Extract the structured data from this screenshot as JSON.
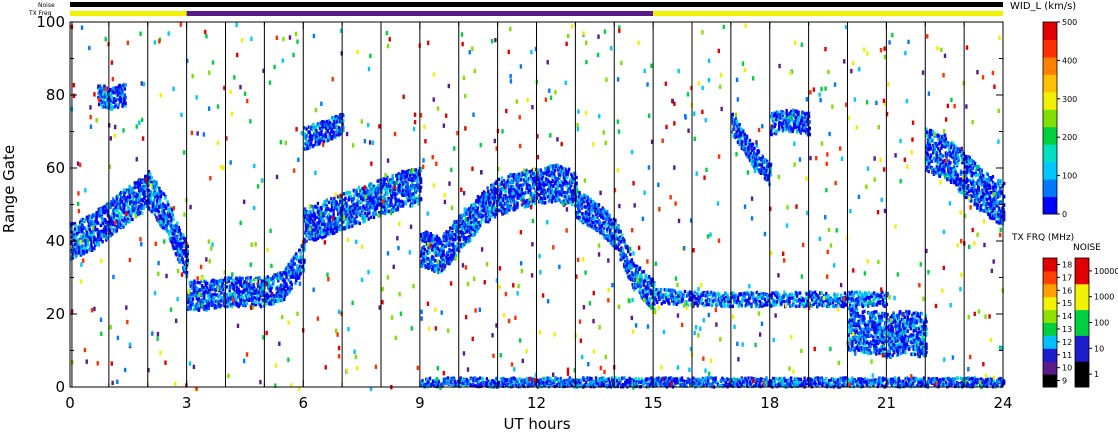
{
  "chart_data": {
    "type": "heatmap",
    "top_labels": {
      "noise": "Noise",
      "txfreq": "TX Freq"
    },
    "xlabel": "UT hours",
    "ylabel": "Range Gate",
    "xlim": [
      0,
      24
    ],
    "ylim": [
      0,
      100
    ],
    "x_ticks": [
      "0",
      "3",
      "6",
      "9",
      "12",
      "15",
      "18",
      "21",
      "24"
    ],
    "y_ticks": [
      "0",
      "20",
      "40",
      "60",
      "80",
      "100"
    ],
    "scan_boundaries_ut": [
      0.05,
      1.0,
      2.0,
      3.0,
      4.0,
      5.0,
      6.0,
      7.0,
      8.0,
      9.0,
      10.0,
      11.0,
      12.0,
      13.0,
      14.0,
      15.0,
      16.0,
      17.0,
      18.0,
      19.0,
      20.0,
      21.0,
      22.0,
      23.0
    ],
    "top_bars": {
      "noise_color": "#000000",
      "txfreq_segments": [
        {
          "from": 0,
          "to": 3,
          "color": "#f2f200"
        },
        {
          "from": 3,
          "to": 15,
          "color": "#5a1a8a"
        },
        {
          "from": 15,
          "to": 24,
          "color": "#f2f200"
        }
      ]
    },
    "echo_bands": [
      {
        "x": [
          0,
          0.5,
          1,
          1.5,
          2,
          2.5,
          3
        ],
        "y": [
          40,
          42,
          46,
          50,
          54,
          46,
          34
        ],
        "width": 5
      },
      {
        "x": [
          0.7,
          1.0,
          1.4
        ],
        "y": [
          80,
          79,
          80
        ],
        "width": 3
      },
      {
        "x": [
          3,
          3.5,
          4,
          4.5,
          5,
          5.5,
          6
        ],
        "y": [
          25,
          25,
          26,
          26,
          26,
          28,
          36
        ],
        "width": 4
      },
      {
        "x": [
          6,
          6.5,
          7,
          7.5,
          8,
          8.5,
          9
        ],
        "y": [
          44,
          46,
          48,
          50,
          52,
          54,
          55
        ],
        "width": 5
      },
      {
        "x": [
          6,
          6.5,
          7
        ],
        "y": [
          68,
          70,
          72
        ],
        "width": 3
      },
      {
        "x": [
          9,
          9.5,
          10,
          10.5,
          11,
          11.5,
          12,
          12.5,
          13
        ],
        "y": [
          38,
          36,
          42,
          48,
          52,
          54,
          55,
          56,
          54
        ],
        "width": 5
      },
      {
        "x": [
          13,
          13.5,
          14,
          14.5,
          15
        ],
        "y": [
          50,
          47,
          42,
          30,
          25
        ],
        "width": 4
      },
      {
        "x": [
          15,
          16,
          17,
          18,
          19,
          20,
          21
        ],
        "y": [
          25,
          24,
          24,
          24,
          24,
          24,
          24
        ],
        "width": 2
      },
      {
        "x": [
          17,
          17.5,
          18
        ],
        "y": [
          72,
          64,
          58
        ],
        "width": 3
      },
      {
        "x": [
          18,
          18.5,
          19
        ],
        "y": [
          72,
          73,
          72
        ],
        "width": 3
      },
      {
        "x": [
          20,
          20.5,
          21,
          21.5,
          22
        ],
        "y": [
          16,
          15,
          14,
          15,
          14
        ],
        "width": 6
      },
      {
        "x": [
          22,
          22.5,
          23,
          23.5,
          24
        ],
        "y": [
          65,
          63,
          58,
          53,
          50
        ],
        "width": 6
      },
      {
        "x": [
          9,
          12,
          15,
          18,
          21,
          24
        ],
        "y": [
          1,
          1,
          1,
          1,
          1,
          1
        ],
        "width": 1.5
      }
    ],
    "colorbars": [
      {
        "label": "WID_L (km/s)",
        "ticks": [
          "0",
          "100",
          "200",
          "300",
          "400",
          "500"
        ],
        "colors": [
          "#0000ff",
          "#0078ff",
          "#00c8ff",
          "#00e0c0",
          "#00d040",
          "#80e000",
          "#f0f000",
          "#ffc000",
          "#ff8000",
          "#ff3000",
          "#e00000"
        ]
      },
      {
        "label": "TX FRQ (MHz)",
        "ticks": [
          "9",
          "10",
          "11",
          "12",
          "13",
          "14",
          "15",
          "16",
          "17",
          "18"
        ],
        "colors": [
          "#000000",
          "#5a1a8a",
          "#1e1ecf",
          "#00c0ff",
          "#00d040",
          "#90e000",
          "#f2f200",
          "#ffa000",
          "#ff4000",
          "#e00000"
        ]
      },
      {
        "label": "NOISE",
        "ticks": [
          "1",
          "10",
          "100",
          "1000",
          "10000"
        ],
        "colors": [
          "#000000",
          "#1e1ecf",
          "#00d040",
          "#f2f200",
          "#e00000"
        ]
      }
    ]
  }
}
